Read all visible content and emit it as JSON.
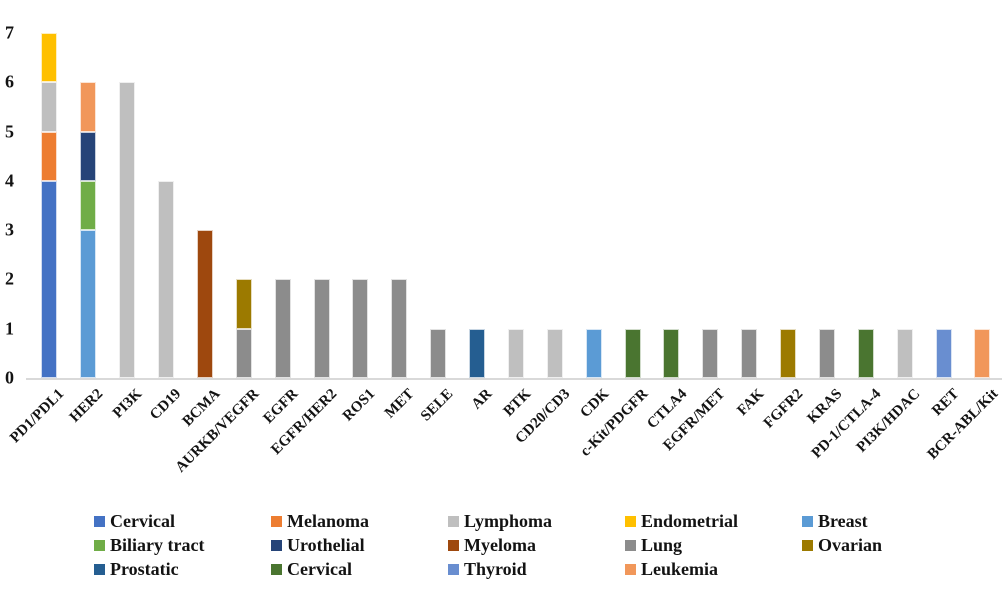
{
  "chart_data": {
    "type": "bar",
    "stacked": true,
    "title": "",
    "xlabel": "",
    "ylabel": "",
    "ylim": [
      0,
      7
    ],
    "yticks": [
      0,
      1,
      2,
      3,
      4,
      5,
      6,
      7
    ],
    "grid": false,
    "legend_position": "bottom",
    "axis_line_color": "#d9d9d9",
    "categories": [
      "PD1/PDL1",
      "HER2",
      "PI3K",
      "CD19",
      "BCMA",
      "AURKB/VEGFR",
      "EGFR",
      "EGFR/HER2",
      "ROS1",
      "MET",
      "SELE",
      "AR",
      "BTK",
      "CD20/CD3",
      "CDK",
      "c-Kit/PDGFR",
      "CTLA4",
      "EGFR/MET",
      "FAK",
      "FGFR2",
      "KRAS",
      "PD-1/CTLA-4",
      "PI3K/HDAC",
      "RET",
      "BCR-ABL/Kit"
    ],
    "series": [
      {
        "name": "Cervical",
        "color": "#4472C4",
        "values": [
          4,
          0,
          0,
          0,
          0,
          0,
          0,
          0,
          0,
          0,
          0,
          0,
          0,
          0,
          0,
          0,
          0,
          0,
          0,
          0,
          0,
          0,
          0,
          0,
          0
        ]
      },
      {
        "name": "Melanoma",
        "color": "#ED7D31",
        "values": [
          1,
          0,
          0,
          0,
          0,
          0,
          0,
          0,
          0,
          0,
          0,
          0,
          0,
          0,
          0,
          0,
          0,
          0,
          0,
          0,
          0,
          0,
          0,
          0,
          0
        ]
      },
      {
        "name": "Lymphoma",
        "color": "#BFBFBF",
        "values": [
          1,
          0,
          6,
          4,
          0,
          0,
          0,
          0,
          0,
          0,
          0,
          0,
          1,
          1,
          0,
          0,
          0,
          0,
          0,
          0,
          0,
          0,
          1,
          0,
          0
        ]
      },
      {
        "name": "Endometrial",
        "color": "#FFC000",
        "values": [
          1,
          0,
          0,
          0,
          0,
          0,
          0,
          0,
          0,
          0,
          0,
          0,
          0,
          0,
          0,
          0,
          0,
          0,
          0,
          0,
          0,
          0,
          0,
          0,
          0
        ]
      },
      {
        "name": "Breast",
        "color": "#5B9BD5",
        "values": [
          0,
          3,
          0,
          0,
          0,
          0,
          0,
          0,
          0,
          0,
          0,
          0,
          0,
          0,
          1,
          0,
          0,
          0,
          0,
          0,
          0,
          0,
          0,
          0,
          0
        ]
      },
      {
        "name": "Biliary tract",
        "color": "#70AD47",
        "values": [
          0,
          1,
          0,
          0,
          0,
          0,
          0,
          0,
          0,
          0,
          0,
          0,
          0,
          0,
          0,
          0,
          0,
          0,
          0,
          0,
          0,
          0,
          0,
          0,
          0
        ]
      },
      {
        "name": "Urothelial",
        "color": "#264478",
        "values": [
          0,
          1,
          0,
          0,
          0,
          0,
          0,
          0,
          0,
          0,
          0,
          0,
          0,
          0,
          0,
          0,
          0,
          0,
          0,
          0,
          0,
          0,
          0,
          0,
          0
        ]
      },
      {
        "name": "Myeloma",
        "color": "#9E480E",
        "values": [
          0,
          0,
          0,
          0,
          3,
          0,
          0,
          0,
          0,
          0,
          0,
          0,
          0,
          0,
          0,
          0,
          0,
          0,
          0,
          0,
          0,
          0,
          0,
          0,
          0
        ]
      },
      {
        "name": "Lung",
        "color": "#8C8C8C",
        "values": [
          0,
          0,
          0,
          0,
          0,
          1,
          2,
          2,
          2,
          2,
          1,
          0,
          0,
          0,
          0,
          0,
          0,
          1,
          1,
          0,
          1,
          0,
          0,
          0,
          0
        ]
      },
      {
        "name": "Ovarian",
        "color": "#9C7A00",
        "values": [
          0,
          0,
          0,
          0,
          0,
          1,
          0,
          0,
          0,
          0,
          0,
          0,
          0,
          0,
          0,
          0,
          0,
          0,
          0,
          1,
          0,
          0,
          0,
          0,
          0
        ]
      },
      {
        "name": "Prostatic",
        "color": "#255E91",
        "values": [
          0,
          0,
          0,
          0,
          0,
          0,
          0,
          0,
          0,
          0,
          0,
          1,
          0,
          0,
          0,
          0,
          0,
          0,
          0,
          0,
          0,
          0,
          0,
          0,
          0
        ]
      },
      {
        "name": "Cervical",
        "color": "#4A7530",
        "values": [
          0,
          0,
          0,
          0,
          0,
          0,
          0,
          0,
          0,
          0,
          0,
          0,
          0,
          0,
          0,
          1,
          1,
          0,
          0,
          0,
          0,
          1,
          0,
          0,
          0
        ]
      },
      {
        "name": "Thyroid",
        "color": "#698ED0",
        "values": [
          0,
          0,
          0,
          0,
          0,
          0,
          0,
          0,
          0,
          0,
          0,
          0,
          0,
          0,
          0,
          0,
          0,
          0,
          0,
          0,
          0,
          0,
          0,
          1,
          0
        ]
      },
      {
        "name": "Leukemia",
        "color": "#F1975A",
        "values": [
          0,
          1,
          0,
          0,
          0,
          0,
          0,
          0,
          0,
          0,
          0,
          0,
          0,
          0,
          0,
          0,
          0,
          0,
          0,
          0,
          0,
          0,
          0,
          0,
          1
        ]
      }
    ]
  }
}
